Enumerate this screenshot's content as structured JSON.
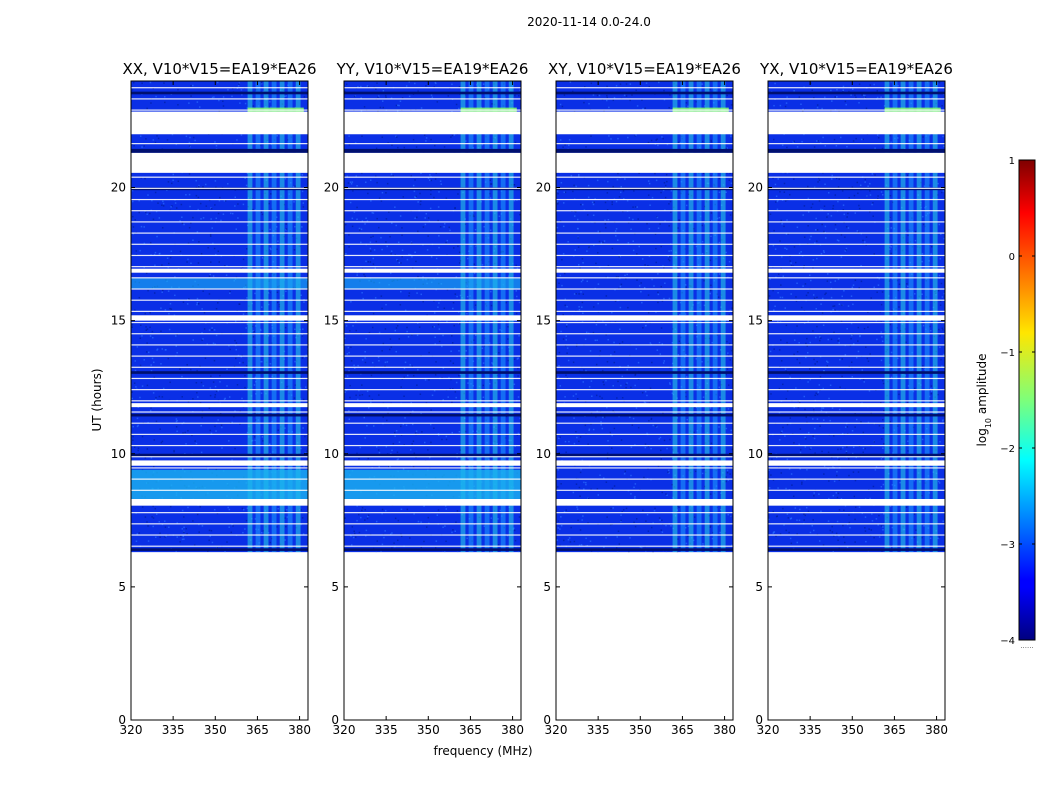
{
  "chart_data": {
    "type": "heatmap",
    "title": "2020-11-14 0.0-24.0",
    "xlabel": "frequency (MHz)",
    "ylabel": "UT (hours)",
    "xlim": [
      320,
      383
    ],
    "ylim": [
      0,
      24
    ],
    "xticks": [
      320,
      335,
      350,
      365,
      380
    ],
    "yticks": [
      0,
      5,
      10,
      15,
      20
    ],
    "panels": [
      {
        "title": "XX, V10*V15=EA19*EA26",
        "pol": "XX"
      },
      {
        "title": "YY, V10*V15=EA19*EA26",
        "pol": "YY"
      },
      {
        "title": "XY, V10*V15=EA19*EA26",
        "pol": "XY"
      },
      {
        "title": "YX, V10*V15=EA19*EA26",
        "pol": "YX"
      }
    ],
    "data_start_ut": 6.3,
    "data_end_ut": 24.0,
    "rfi_band_mhz": [
      361.5,
      381.5
    ],
    "gaps_ut": [
      [
        22.0,
        22.85
      ],
      [
        21.0,
        21.25
      ],
      [
        20.55,
        21.3
      ],
      [
        16.8,
        16.95
      ],
      [
        15.0,
        15.2
      ],
      [
        11.75,
        11.9
      ],
      [
        9.55,
        9.75
      ],
      [
        8.05,
        8.3
      ]
    ],
    "colorbar": {
      "label": "log10 amplitude",
      "label_base": "log",
      "label_sub": "10",
      "label_rest": "amplitude",
      "range": [
        -4,
        1
      ],
      "ticks": [
        1,
        0,
        -1,
        -2,
        -3,
        -4
      ],
      "tick_labels": [
        "1",
        "0",
        "−1",
        "−2",
        "−3",
        "−4"
      ],
      "colormap": "jet",
      "footer": "......"
    }
  }
}
